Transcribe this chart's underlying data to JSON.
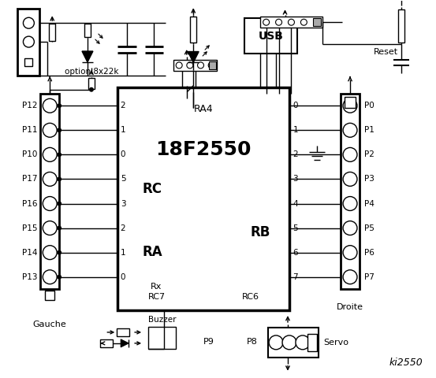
{
  "bg_color": "#ffffff",
  "lc": "#000000",
  "title": "ki2550",
  "chip_label": "18F2550",
  "chip_sub": "RA4",
  "rc_label": "RC",
  "ra_label": "RA",
  "rb_label": "RB",
  "rx_label": "Rx",
  "rc7_label": "RC7",
  "rc6_label": "RC6",
  "usb_label": "USB",
  "reset_label": "Reset",
  "gauche_label": "Gauche",
  "droite_label": "Droite",
  "option_label": "option 8x22k",
  "buzzer_label": "Buzzer",
  "p9_label": "P9",
  "p8_label": "P8",
  "servo_label": "Servo",
  "left_pins": [
    "P12",
    "P11",
    "P10",
    "P17",
    "P16",
    "P15",
    "P14",
    "P13"
  ],
  "right_pins": [
    "P0",
    "P1",
    "P2",
    "P3",
    "P4",
    "P5",
    "P6",
    "P7"
  ],
  "rc_nums": [
    "2",
    "1",
    "0"
  ],
  "ra_nums": [
    "5",
    "3",
    "2",
    "1",
    "0"
  ],
  "rb_nums": [
    "0",
    "1",
    "2",
    "3",
    "4",
    "5",
    "6",
    "7"
  ]
}
